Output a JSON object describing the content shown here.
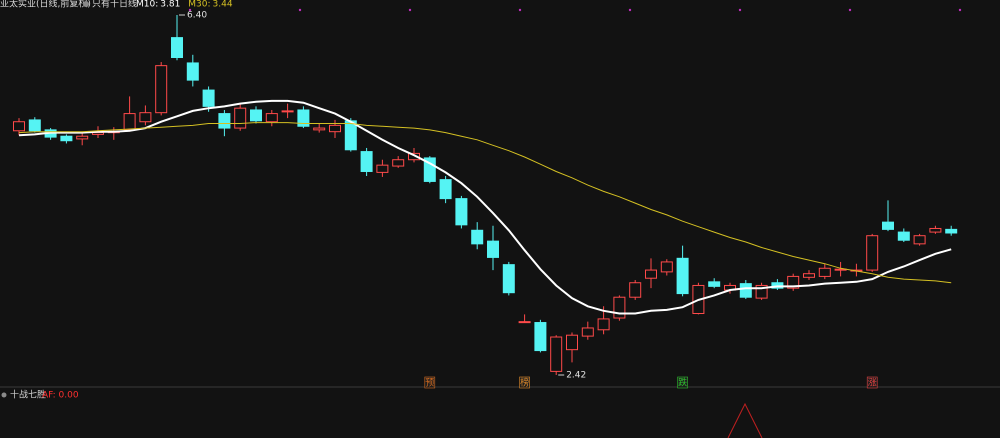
{
  "chart_data": {
    "type": "candlestick",
    "title": "亚太实业(日线,前复权)",
    "subtitle": "只有十日线",
    "up_color": "#ff4a4a",
    "down_color": "#55f3f3",
    "open": [
      5.12,
      5.24,
      5.13,
      5.06,
      5.03,
      5.08,
      5.1,
      5.13,
      5.22,
      5.32,
      6.15,
      5.87,
      5.57,
      5.31,
      5.15,
      5.35,
      5.22,
      5.33,
      5.35,
      5.13,
      5.11,
      5.23,
      4.89,
      4.66,
      4.73,
      4.8,
      4.82,
      4.58,
      4.37,
      4.02,
      3.9,
      3.64,
      3.01,
      3.0,
      2.46,
      2.7,
      2.85,
      2.92,
      3.05,
      3.28,
      3.49,
      3.56,
      3.71,
      3.1,
      3.45,
      3.36,
      3.43,
      3.27,
      3.44,
      3.38,
      3.5,
      3.51,
      3.58,
      3.58,
      3.58,
      4.11,
      4.0,
      3.87,
      4.0,
      4.03
    ],
    "high": [
      5.26,
      5.27,
      5.15,
      5.08,
      5.1,
      5.17,
      5.16,
      5.5,
      5.4,
      5.88,
      6.4,
      5.96,
      5.61,
      5.35,
      5.42,
      5.39,
      5.35,
      5.42,
      5.39,
      5.2,
      5.24,
      5.26,
      4.93,
      4.8,
      4.84,
      4.93,
      4.84,
      4.62,
      4.4,
      4.11,
      4.07,
      3.67,
      3.09,
      3.03,
      2.86,
      2.89,
      3.01,
      3.18,
      3.3,
      3.47,
      3.71,
      3.7,
      3.85,
      3.44,
      3.49,
      3.44,
      3.47,
      3.44,
      3.48,
      3.54,
      3.58,
      3.65,
      3.67,
      3.65,
      3.98,
      4.35,
      4.04,
      3.98,
      4.07,
      4.07
    ],
    "low": [
      5.07,
      5.1,
      5.02,
      4.98,
      4.96,
      5.04,
      5.02,
      5.11,
      5.18,
      5.29,
      5.9,
      5.61,
      5.33,
      5.06,
      5.12,
      5.2,
      5.17,
      5.26,
      5.15,
      5.1,
      5.04,
      4.89,
      4.62,
      4.61,
      4.71,
      4.77,
      4.54,
      4.32,
      4.04,
      3.81,
      3.58,
      3.3,
      3.01,
      2.67,
      2.42,
      2.56,
      2.81,
      2.87,
      3.02,
      3.25,
      3.38,
      3.52,
      3.29,
      3.09,
      3.38,
      3.32,
      3.26,
      3.25,
      3.36,
      3.35,
      3.47,
      3.48,
      3.51,
      3.51,
      3.56,
      4.01,
      3.89,
      3.85,
      3.98,
      3.96
    ],
    "close": [
      5.22,
      5.12,
      5.05,
      5.01,
      5.06,
      5.1,
      5.11,
      5.31,
      5.32,
      5.84,
      5.93,
      5.68,
      5.39,
      5.15,
      5.37,
      5.23,
      5.31,
      5.34,
      5.17,
      5.15,
      5.18,
      4.91,
      4.67,
      4.74,
      4.8,
      4.87,
      4.56,
      4.37,
      4.08,
      3.87,
      3.72,
      3.33,
      3.01,
      2.69,
      2.84,
      2.86,
      2.94,
      3.04,
      3.28,
      3.44,
      3.58,
      3.67,
      3.32,
      3.41,
      3.4,
      3.41,
      3.28,
      3.41,
      3.38,
      3.51,
      3.54,
      3.6,
      3.59,
      3.58,
      3.96,
      4.03,
      3.91,
      3.96,
      4.04,
      3.99
    ],
    "series": [
      {
        "name": "M10:",
        "color": "#ffffff",
        "values": [
          5.07,
          5.08,
          5.1,
          5.1,
          5.1,
          5.11,
          5.11,
          5.12,
          5.15,
          5.22,
          5.28,
          5.34,
          5.37,
          5.39,
          5.42,
          5.44,
          5.45,
          5.45,
          5.43,
          5.37,
          5.31,
          5.22,
          5.12,
          5.02,
          4.93,
          4.85,
          4.76,
          4.66,
          4.54,
          4.39,
          4.21,
          4.02,
          3.8,
          3.59,
          3.41,
          3.27,
          3.18,
          3.13,
          3.1,
          3.1,
          3.13,
          3.14,
          3.17,
          3.25,
          3.3,
          3.36,
          3.38,
          3.38,
          3.4,
          3.4,
          3.41,
          3.43,
          3.44,
          3.45,
          3.48,
          3.56,
          3.62,
          3.69,
          3.76,
          3.81
        ]
      },
      {
        "name": "M30:",
        "color": "#d4c023",
        "values": [
          5.1,
          5.11,
          5.11,
          5.11,
          5.11,
          5.12,
          5.13,
          5.14,
          5.15,
          5.16,
          5.17,
          5.18,
          5.2,
          5.2,
          5.2,
          5.21,
          5.21,
          5.21,
          5.2,
          5.2,
          5.2,
          5.2,
          5.18,
          5.17,
          5.16,
          5.15,
          5.13,
          5.1,
          5.06,
          5.02,
          4.96,
          4.9,
          4.83,
          4.75,
          4.67,
          4.6,
          4.52,
          4.45,
          4.39,
          4.32,
          4.25,
          4.19,
          4.12,
          4.06,
          4.0,
          3.94,
          3.89,
          3.83,
          3.78,
          3.73,
          3.69,
          3.65,
          3.6,
          3.57,
          3.54,
          3.5,
          3.48,
          3.47,
          3.46,
          3.44
        ]
      }
    ],
    "annotations": [
      {
        "label": "6.40",
        "value": 6.4
      },
      {
        "label": "2.42",
        "value": 2.42
      }
    ],
    "signals": [
      "预",
      "榜",
      "跌",
      "涨"
    ],
    "indicator": {
      "name": "十战七胜",
      "label": "AF: 0.00"
    }
  }
}
